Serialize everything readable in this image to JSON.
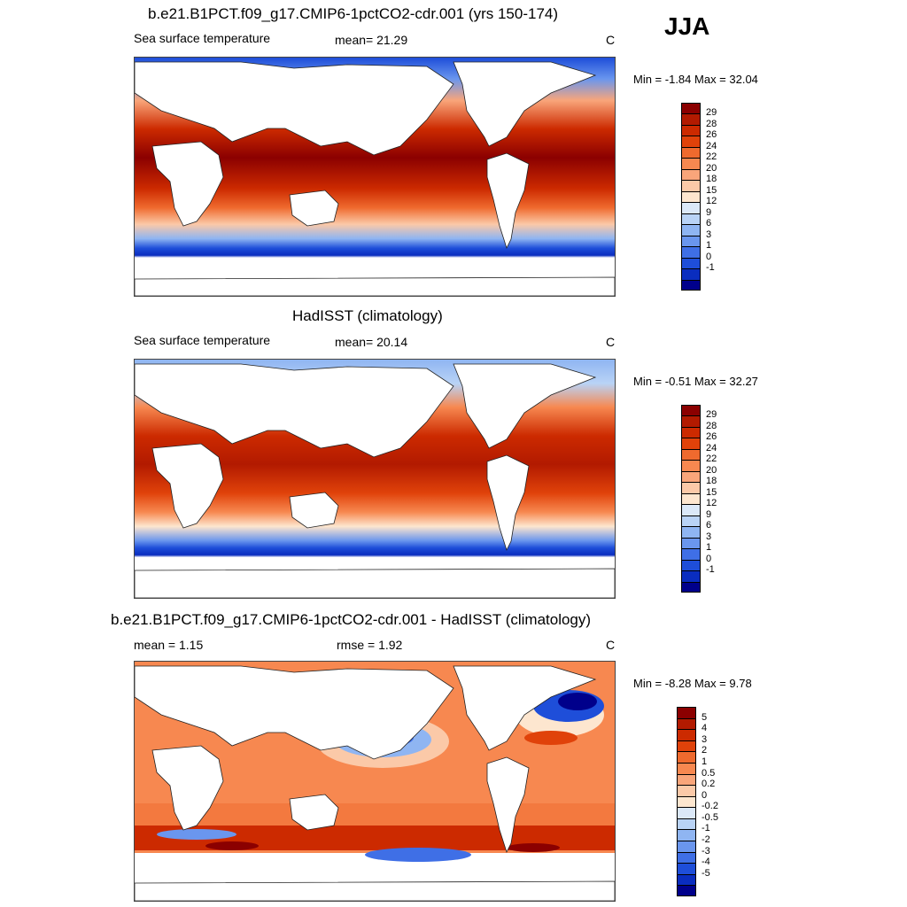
{
  "season": "JJA",
  "panels": [
    {
      "id": "model",
      "title": "b.e21.B1PCT.f09_g17.CMIP6-1pctCO2-cdr.001 (yrs 150-174)",
      "left_label": "Sea surface temperature",
      "center_label": "mean=  21.29",
      "units": "C",
      "minmax": "Min =  -1.84 Max =  32.04",
      "colorbar": {
        "colors": [
          "#8b0000",
          "#b21a00",
          "#cc2a00",
          "#e0420a",
          "#ef6a2e",
          "#f78850",
          "#f9a57a",
          "#fbc9a8",
          "#fde6cf",
          "#dbe8f8",
          "#b9d3f6",
          "#8fb5f2",
          "#6a96ee",
          "#3f6fe6",
          "#1e4ed9",
          "#0a2dbf",
          "#00008b"
        ],
        "ticks": [
          "29",
          "28",
          "26",
          "24",
          "22",
          "20",
          "18",
          "15",
          "12",
          "9",
          "6",
          "3",
          "1",
          "0",
          "-1"
        ]
      }
    },
    {
      "id": "obs",
      "title": "HadISST (climatology)",
      "left_label": "Sea surface temperature",
      "center_label": "mean=  20.14",
      "units": "C",
      "minmax": "Min =  -0.51 Max =  32.27",
      "colorbar": {
        "colors": [
          "#8b0000",
          "#b21a00",
          "#cc2a00",
          "#e0420a",
          "#ef6a2e",
          "#f78850",
          "#f9a57a",
          "#fbc9a8",
          "#fde6cf",
          "#dbe8f8",
          "#b9d3f6",
          "#8fb5f2",
          "#6a96ee",
          "#3f6fe6",
          "#1e4ed9",
          "#0a2dbf",
          "#00008b"
        ],
        "ticks": [
          "29",
          "28",
          "26",
          "24",
          "22",
          "20",
          "18",
          "15",
          "12",
          "9",
          "6",
          "3",
          "1",
          "0",
          "-1"
        ]
      }
    },
    {
      "id": "diff",
      "title": "b.e21.B1PCT.f09_g17.CMIP6-1pctCO2-cdr.001 - HadISST (climatology)",
      "left_label": "mean =   1.15",
      "center_label": "rmse =   1.92",
      "units": "C",
      "minmax": "Min =  -8.28 Max =   9.78",
      "colorbar": {
        "colors": [
          "#8b0000",
          "#b21a00",
          "#cc2a00",
          "#e0420a",
          "#ef6a2e",
          "#f78850",
          "#f9a57a",
          "#fbc9a8",
          "#fde6cf",
          "#dbe8f8",
          "#b9d3f6",
          "#8fb5f2",
          "#6a96ee",
          "#3f6fe6",
          "#1e4ed9",
          "#0a2dbf",
          "#00008b"
        ],
        "ticks": [
          "5",
          "4",
          "3",
          "2",
          "1",
          "0.5",
          "0.2",
          "0",
          "-0.2",
          "-0.5",
          "-1",
          "-2",
          "-3",
          "-4",
          "-5"
        ]
      }
    }
  ]
}
